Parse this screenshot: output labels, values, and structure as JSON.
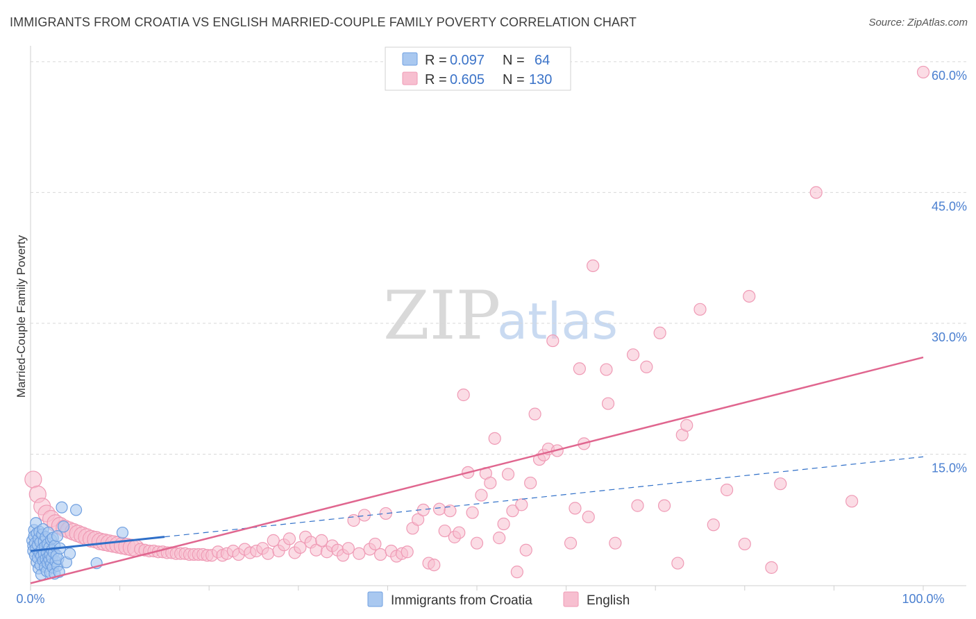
{
  "title": "IMMIGRANTS FROM CROATIA VS ENGLISH MARRIED-COUPLE FAMILY POVERTY CORRELATION CHART",
  "source": "Source: ZipAtlas.com",
  "watermark": {
    "zip": "ZIP",
    "atlas": "atlas"
  },
  "colors": {
    "croatia_fill": "#a9c8f0",
    "croatia_stroke": "#6f9fe0",
    "croatia_line": "#2f6fc8",
    "english_fill": "#f7bfd0",
    "english_stroke": "#ef9ab5",
    "english_line": "#e0668f",
    "grid": "#d8d8d8",
    "tick_text": "#4a7fd0"
  },
  "legend": {
    "row1": {
      "r_label": "R =",
      "r_value": "0.097",
      "n_label": "N =",
      "n_value": "64"
    },
    "row2": {
      "r_label": "R =",
      "r_value": "0.605",
      "n_label": "N =",
      "n_value": "130"
    }
  },
  "bottom_legend": {
    "series1": "Immigrants from Croatia",
    "series2": "English"
  },
  "chart_data": {
    "type": "scatter",
    "title": "IMMIGRANTS FROM CROATIA VS ENGLISH MARRIED-COUPLE FAMILY POVERTY CORRELATION CHART",
    "xlabel": "",
    "ylabel": "Married-Couple Family Poverty",
    "xlim": [
      0,
      100
    ],
    "ylim": [
      0,
      61.5
    ],
    "x_tick_labels": [
      "0.0%",
      "100.0%"
    ],
    "y_ticks": [
      15,
      30,
      45,
      60
    ],
    "y_tick_labels": [
      "15.0%",
      "30.0%",
      "45.0%",
      "60.0%"
    ],
    "grid": true,
    "legend_position": "top-center",
    "series": [
      {
        "name": "Immigrants from Croatia",
        "r": 0.097,
        "n": 64,
        "trend": {
          "x": [
            0,
            100
          ],
          "y": [
            3.9,
            14.7
          ]
        },
        "trend_solid_until_x": 15,
        "points": [
          [
            0.2,
            5.1
          ],
          [
            0.3,
            4.5
          ],
          [
            0.3,
            3.9
          ],
          [
            0.4,
            6.3
          ],
          [
            0.4,
            5.6
          ],
          [
            0.5,
            4.8
          ],
          [
            0.5,
            3.4
          ],
          [
            0.6,
            7.1
          ],
          [
            0.6,
            4.2
          ],
          [
            0.7,
            2.6
          ],
          [
            0.7,
            5.9
          ],
          [
            0.8,
            3.1
          ],
          [
            0.8,
            4.6
          ],
          [
            0.9,
            1.9
          ],
          [
            0.9,
            5.3
          ],
          [
            1.0,
            3.7
          ],
          [
            1.0,
            6.1
          ],
          [
            1.1,
            2.3
          ],
          [
            1.1,
            4.9
          ],
          [
            1.2,
            3.3
          ],
          [
            1.2,
            1.2
          ],
          [
            1.3,
            5.8
          ],
          [
            1.3,
            4.1
          ],
          [
            1.4,
            2.8
          ],
          [
            1.4,
            6.4
          ],
          [
            1.5,
            3.6
          ],
          [
            1.5,
            5.0
          ],
          [
            1.6,
            2.1
          ],
          [
            1.6,
            4.4
          ],
          [
            1.7,
            3.0
          ],
          [
            1.7,
            5.5
          ],
          [
            1.8,
            1.6
          ],
          [
            1.8,
            3.8
          ],
          [
            1.9,
            2.5
          ],
          [
            1.9,
            4.7
          ],
          [
            2.0,
            3.2
          ],
          [
            2.0,
            6.0
          ],
          [
            2.1,
            2.9
          ],
          [
            2.1,
            4.3
          ],
          [
            2.2,
            1.4
          ],
          [
            2.2,
            3.5
          ],
          [
            2.3,
            5.2
          ],
          [
            2.3,
            2.4
          ],
          [
            2.4,
            4.0
          ],
          [
            2.4,
            3.1
          ],
          [
            2.5,
            5.4
          ],
          [
            2.5,
            2.0
          ],
          [
            2.6,
            3.7
          ],
          [
            2.7,
            1.3
          ],
          [
            2.7,
            4.5
          ],
          [
            2.8,
            2.7
          ],
          [
            2.9,
            3.4
          ],
          [
            3.0,
            5.6
          ],
          [
            3.0,
            2.2
          ],
          [
            3.1,
            3.0
          ],
          [
            3.2,
            1.5
          ],
          [
            3.3,
            4.2
          ],
          [
            3.5,
            8.9
          ],
          [
            3.7,
            6.7
          ],
          [
            4.0,
            2.6
          ],
          [
            4.4,
            3.6
          ],
          [
            5.1,
            8.6
          ],
          [
            7.4,
            2.5
          ],
          [
            10.3,
            6.0
          ]
        ]
      },
      {
        "name": "English",
        "r": 0.605,
        "n": 130,
        "trend": {
          "x": [
            0,
            100
          ],
          "y": [
            0.2,
            26.1
          ]
        },
        "points": [
          [
            0.3,
            12.1
          ],
          [
            0.8,
            10.4
          ],
          [
            1.3,
            9.0
          ],
          [
            1.8,
            8.2
          ],
          [
            2.3,
            7.6
          ],
          [
            2.8,
            7.1
          ],
          [
            3.3,
            6.8
          ],
          [
            3.8,
            6.5
          ],
          [
            4.3,
            6.3
          ],
          [
            4.8,
            6.1
          ],
          [
            5.3,
            5.9
          ],
          [
            5.8,
            5.7
          ],
          [
            6.3,
            5.5
          ],
          [
            6.8,
            5.3
          ],
          [
            7.3,
            5.2
          ],
          [
            7.8,
            5.0
          ],
          [
            8.3,
            4.9
          ],
          [
            8.8,
            4.8
          ],
          [
            9.3,
            4.7
          ],
          [
            9.8,
            4.6
          ],
          [
            10.3,
            4.5
          ],
          [
            10.8,
            4.4
          ],
          [
            11.3,
            4.3
          ],
          [
            11.8,
            4.2
          ],
          [
            12.3,
            4.1
          ],
          [
            12.8,
            4.0
          ],
          [
            13.3,
            3.9
          ],
          [
            13.8,
            3.9
          ],
          [
            14.3,
            3.8
          ],
          [
            14.8,
            3.8
          ],
          [
            15.3,
            3.7
          ],
          [
            15.8,
            3.7
          ],
          [
            16.3,
            3.6
          ],
          [
            16.8,
            3.6
          ],
          [
            17.3,
            3.6
          ],
          [
            17.8,
            3.5
          ],
          [
            18.3,
            3.5
          ],
          [
            18.8,
            3.5
          ],
          [
            19.3,
            3.5
          ],
          [
            19.8,
            3.4
          ],
          [
            20.3,
            3.4
          ],
          [
            21.0,
            3.8
          ],
          [
            21.5,
            3.4
          ],
          [
            22.0,
            3.6
          ],
          [
            22.7,
            3.9
          ],
          [
            23.3,
            3.5
          ],
          [
            24.0,
            4.1
          ],
          [
            24.6,
            3.7
          ],
          [
            25.3,
            3.9
          ],
          [
            26.0,
            4.2
          ],
          [
            26.6,
            3.6
          ],
          [
            27.2,
            5.1
          ],
          [
            27.8,
            3.9
          ],
          [
            28.4,
            4.6
          ],
          [
            29.0,
            5.3
          ],
          [
            29.6,
            3.7
          ],
          [
            30.2,
            4.3
          ],
          [
            30.8,
            5.5
          ],
          [
            31.4,
            4.9
          ],
          [
            32.0,
            4.0
          ],
          [
            32.6,
            5.1
          ],
          [
            33.2,
            3.8
          ],
          [
            33.8,
            4.5
          ],
          [
            34.4,
            4.0
          ],
          [
            35.0,
            3.4
          ],
          [
            35.6,
            4.2
          ],
          [
            36.2,
            7.4
          ],
          [
            36.8,
            3.6
          ],
          [
            37.4,
            8.0
          ],
          [
            38.0,
            4.1
          ],
          [
            38.6,
            4.7
          ],
          [
            39.2,
            3.5
          ],
          [
            39.8,
            8.2
          ],
          [
            40.4,
            3.9
          ],
          [
            41.0,
            3.3
          ],
          [
            41.6,
            3.6
          ],
          [
            42.2,
            3.8
          ],
          [
            42.8,
            6.5
          ],
          [
            43.4,
            7.5
          ],
          [
            44.0,
            8.6
          ],
          [
            44.6,
            2.5
          ],
          [
            45.2,
            2.3
          ],
          [
            45.8,
            8.7
          ],
          [
            46.4,
            6.2
          ],
          [
            47.0,
            8.5
          ],
          [
            47.5,
            5.5
          ],
          [
            48.0,
            6.0
          ],
          [
            48.5,
            21.8
          ],
          [
            49.0,
            12.9
          ],
          [
            49.5,
            8.3
          ],
          [
            50.0,
            4.8
          ],
          [
            50.5,
            10.3
          ],
          [
            51.0,
            12.8
          ],
          [
            51.5,
            11.7
          ],
          [
            52.0,
            16.8
          ],
          [
            52.5,
            5.4
          ],
          [
            53.0,
            7.0
          ],
          [
            53.5,
            12.7
          ],
          [
            54.0,
            8.5
          ],
          [
            54.5,
            1.5
          ],
          [
            55.0,
            9.2
          ],
          [
            55.5,
            4.0
          ],
          [
            56.0,
            11.7
          ],
          [
            56.5,
            19.6
          ],
          [
            57.0,
            14.4
          ],
          [
            57.5,
            14.9
          ],
          [
            58.0,
            15.6
          ],
          [
            58.5,
            28.0
          ],
          [
            59.0,
            15.4
          ],
          [
            60.5,
            4.8
          ],
          [
            61.0,
            8.8
          ],
          [
            61.5,
            24.8
          ],
          [
            62.0,
            16.2
          ],
          [
            62.5,
            7.8
          ],
          [
            63.0,
            36.6
          ],
          [
            64.5,
            24.7
          ],
          [
            64.7,
            20.8
          ],
          [
            65.5,
            4.8
          ],
          [
            67.5,
            26.4
          ],
          [
            68.0,
            9.1
          ],
          [
            69.0,
            25.0
          ],
          [
            70.5,
            28.9
          ],
          [
            71.0,
            9.1
          ],
          [
            72.5,
            2.5
          ],
          [
            73.0,
            17.2
          ],
          [
            73.5,
            18.3
          ],
          [
            75.0,
            31.6
          ],
          [
            76.5,
            6.9
          ],
          [
            78.0,
            10.9
          ],
          [
            80.0,
            4.7
          ],
          [
            80.5,
            33.1
          ],
          [
            83.0,
            2.0
          ],
          [
            84.0,
            11.6
          ],
          [
            88.0,
            45.0
          ],
          [
            92.0,
            9.6
          ],
          [
            100.0,
            58.8
          ]
        ]
      }
    ]
  }
}
